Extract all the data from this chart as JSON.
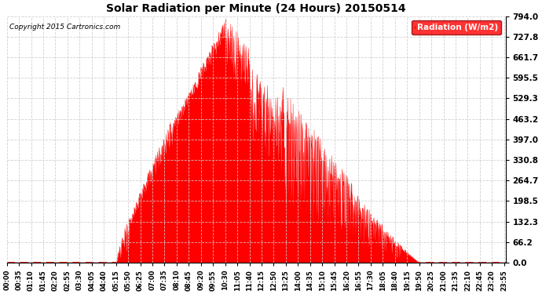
{
  "title": "Solar Radiation per Minute (24 Hours) 20150514",
  "copyright_text": "Copyright 2015 Cartronics.com",
  "ylabel": "Radiation (W/m2)",
  "y_ticks": [
    0.0,
    66.2,
    132.3,
    198.5,
    264.7,
    330.8,
    397.0,
    463.2,
    529.3,
    595.5,
    661.7,
    727.8,
    794.0
  ],
  "y_max": 794.0,
  "fill_color": "#FF0000",
  "line_color": "#FF0000",
  "background_color": "#FFFFFF",
  "grid_color": "#BBBBBB",
  "legend_bg": "#FF0000",
  "legend_text_color": "#FFFFFF",
  "x_tick_interval": 35,
  "total_minutes": 1440,
  "sunrise_minute": 315,
  "sunset_minute": 1190,
  "peak_minute": 635,
  "peak_value": 794.0
}
